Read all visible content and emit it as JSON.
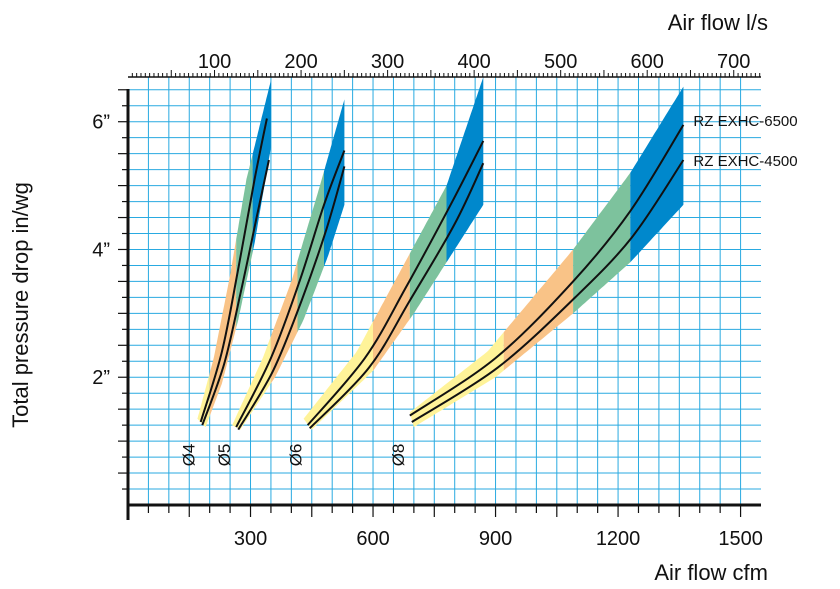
{
  "chart_data": {
    "type": "line",
    "xlabel": "Air flow  cfm",
    "ylabel": "Total pressure drop in/wg",
    "x2label": "Air flow  l/s",
    "xlim": [
      0,
      1550
    ],
    "ylim": [
      0,
      6.7
    ],
    "x2lim": [
      0,
      731.5
    ],
    "x_ticks": [
      300,
      600,
      900,
      1200,
      1500
    ],
    "x_tick_labels": [
      "300",
      "600",
      "900",
      "1200",
      "1500"
    ],
    "y_ticks": [
      2,
      4,
      6
    ],
    "y_tick_labels": [
      "2”",
      "4”",
      "6”"
    ],
    "x2_ticks": [
      100,
      200,
      300,
      400,
      500,
      600,
      700
    ],
    "x2_tick_labels": [
      "100",
      "200",
      "300",
      "400",
      "500",
      "600",
      "700"
    ],
    "grid": true,
    "band_colors": {
      "yellow": "#fff399",
      "orange": "#f9c387",
      "green": "#7dc29d",
      "blue": "#0088cc"
    },
    "line_color": "#111111",
    "grid_color": "#29aae1",
    "series_labels": [
      "RZ EXHC-6500",
      "RZ EXHC-4500"
    ],
    "ducts": [
      {
        "label": "Ø4",
        "band_lower": [
          [
            190,
            1.22
          ],
          [
            230,
            1.9
          ],
          [
            270,
            2.9
          ],
          [
            310,
            4.1
          ],
          [
            350,
            5.6
          ]
        ],
        "band_upper": [
          [
            170,
            1.35
          ],
          [
            210,
            2.3
          ],
          [
            250,
            3.6
          ],
          [
            290,
            5.1
          ],
          [
            350,
            6.65
          ]
        ],
        "band_breaks": [
          [
            0,
            200,
            "yellow"
          ],
          [
            200,
            265,
            "orange"
          ],
          [
            265,
            305,
            "green"
          ],
          [
            305,
            360,
            "blue"
          ]
        ],
        "series": [
          {
            "name": "RZ EXHC-6500",
            "points": [
              [
                178,
                1.3
              ],
              [
                230,
                2.4
              ],
              [
                270,
                3.7
              ],
              [
                310,
                5.1
              ],
              [
                340,
                6.05
              ]
            ]
          },
          {
            "name": "RZ EXHC-4500",
            "points": [
              [
                182,
                1.25
              ],
              [
                235,
                2.2
              ],
              [
                275,
                3.3
              ],
              [
                315,
                4.5
              ],
              [
                345,
                5.4
              ]
            ]
          }
        ]
      },
      {
        "label": "Ø5",
        "band_lower": [
          [
            275,
            1.18
          ],
          [
            360,
            2.0
          ],
          [
            430,
            2.9
          ],
          [
            490,
            3.9
          ],
          [
            530,
            4.7
          ]
        ],
        "band_upper": [
          [
            255,
            1.25
          ],
          [
            330,
            2.3
          ],
          [
            400,
            3.5
          ],
          [
            470,
            5.0
          ],
          [
            530,
            6.35
          ]
        ],
        "band_breaks": [
          [
            0,
            350,
            "yellow"
          ],
          [
            350,
            415,
            "orange"
          ],
          [
            415,
            480,
            "green"
          ],
          [
            480,
            560,
            "blue"
          ]
        ],
        "series": [
          {
            "name": "RZ EXHC-6500",
            "points": [
              [
                265,
                1.22
              ],
              [
                350,
                2.3
              ],
              [
                420,
                3.5
              ],
              [
                480,
                4.7
              ],
              [
                530,
                5.55
              ]
            ]
          },
          {
            "name": "RZ EXHC-4500",
            "points": [
              [
                270,
                1.18
              ],
              [
                355,
                2.1
              ],
              [
                425,
                3.2
              ],
              [
                485,
                4.3
              ],
              [
                530,
                5.3
              ]
            ]
          }
        ]
      },
      {
        "label": "Ø6",
        "band_lower": [
          [
            450,
            1.18
          ],
          [
            600,
            2.1
          ],
          [
            700,
            3.0
          ],
          [
            790,
            3.9
          ],
          [
            870,
            4.7
          ]
        ],
        "band_upper": [
          [
            430,
            1.35
          ],
          [
            560,
            2.4
          ],
          [
            670,
            3.7
          ],
          [
            780,
            5.0
          ],
          [
            870,
            6.7
          ]
        ],
        "band_breaks": [
          [
            0,
            600,
            "yellow"
          ],
          [
            600,
            690,
            "orange"
          ],
          [
            690,
            780,
            "green"
          ],
          [
            780,
            900,
            "blue"
          ]
        ],
        "series": [
          {
            "name": "RZ EXHC-6500",
            "points": [
              [
                440,
                1.25
              ],
              [
                580,
                2.3
              ],
              [
                680,
                3.4
              ],
              [
                790,
                4.7
              ],
              [
                870,
                5.7
              ]
            ]
          },
          {
            "name": "RZ EXHC-4500",
            "points": [
              [
                445,
                1.2
              ],
              [
                590,
                2.15
              ],
              [
                690,
                3.2
              ],
              [
                800,
                4.4
              ],
              [
                870,
                5.35
              ]
            ]
          }
        ]
      },
      {
        "label": "Ø8",
        "band_lower": [
          [
            700,
            1.22
          ],
          [
            900,
            2.0
          ],
          [
            1090,
            3.0
          ],
          [
            1230,
            3.8
          ],
          [
            1360,
            4.7
          ]
        ],
        "band_upper": [
          [
            690,
            1.45
          ],
          [
            880,
            2.4
          ],
          [
            1090,
            4.0
          ],
          [
            1230,
            5.2
          ],
          [
            1360,
            6.55
          ]
        ],
        "band_breaks": [
          [
            0,
            920,
            "yellow"
          ],
          [
            920,
            1090,
            "orange"
          ],
          [
            1090,
            1230,
            "green"
          ],
          [
            1230,
            1400,
            "blue"
          ]
        ],
        "series": [
          {
            "name": "RZ EXHC-6500",
            "points": [
              [
                690,
                1.4
              ],
              [
                900,
                2.3
              ],
              [
                1090,
                3.5
              ],
              [
                1230,
                4.6
              ],
              [
                1360,
                5.95
              ]
            ]
          },
          {
            "name": "RZ EXHC-4500",
            "points": [
              [
                695,
                1.3
              ],
              [
                905,
                2.15
              ],
              [
                1095,
                3.25
              ],
              [
                1235,
                4.2
              ],
              [
                1360,
                5.4
              ]
            ]
          }
        ]
      }
    ]
  }
}
